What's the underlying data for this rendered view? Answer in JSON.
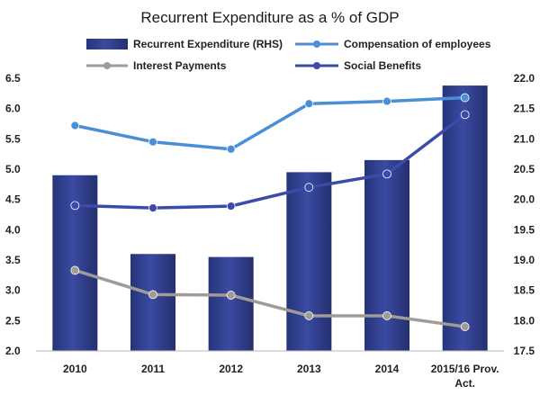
{
  "chart_data": {
    "type": "bar+line",
    "title": "Recurrent Expenditure as a % of GDP",
    "categories": [
      "2010",
      "2011",
      "2012",
      "2013",
      "2014",
      "2015/16 Prov. Act."
    ],
    "category_lines": [
      [
        "2010"
      ],
      [
        "2011"
      ],
      [
        "2012"
      ],
      [
        "2013"
      ],
      [
        "2014"
      ],
      [
        "2015/16 Prov.",
        "Act."
      ]
    ],
    "y_left": {
      "min": 2.0,
      "max": 6.5,
      "step": 0.5,
      "ticks": [
        "2.0",
        "2.5",
        "3.0",
        "3.5",
        "4.0",
        "4.5",
        "5.0",
        "5.5",
        "6.0",
        "6.5"
      ]
    },
    "y_right": {
      "min": 17.5,
      "max": 22.0,
      "step": 0.5,
      "ticks": [
        "17.5",
        "18.0",
        "18.5",
        "19.0",
        "19.5",
        "20.0",
        "20.5",
        "21.0",
        "21.5",
        "22.0"
      ]
    },
    "series": [
      {
        "name": "Recurrent Expenditure (RHS)",
        "kind": "bar",
        "axis": "right",
        "color": "#2e3d8a",
        "values": [
          20.4,
          19.1,
          19.05,
          20.45,
          20.65,
          21.88
        ]
      },
      {
        "name": "Compensation of employees",
        "kind": "line",
        "axis": "left",
        "color": "#4a8fd6",
        "values": [
          5.72,
          5.45,
          5.33,
          6.08,
          6.12,
          6.18
        ]
      },
      {
        "name": "Interest Payments",
        "kind": "line",
        "axis": "left",
        "color": "#a09b96",
        "values": [
          3.33,
          2.93,
          2.92,
          2.58,
          2.58,
          2.4
        ]
      },
      {
        "name": "Social Benefits",
        "kind": "line",
        "axis": "left",
        "color": "#3c4ba8",
        "values": [
          4.4,
          4.36,
          4.39,
          4.7,
          4.92,
          5.9
        ]
      }
    ],
    "legend": [
      "Recurrent Expenditure (RHS)",
      "Compensation of employees",
      "Interest Payments",
      "Social Benefits"
    ],
    "grid": false,
    "legend_position": "top"
  }
}
